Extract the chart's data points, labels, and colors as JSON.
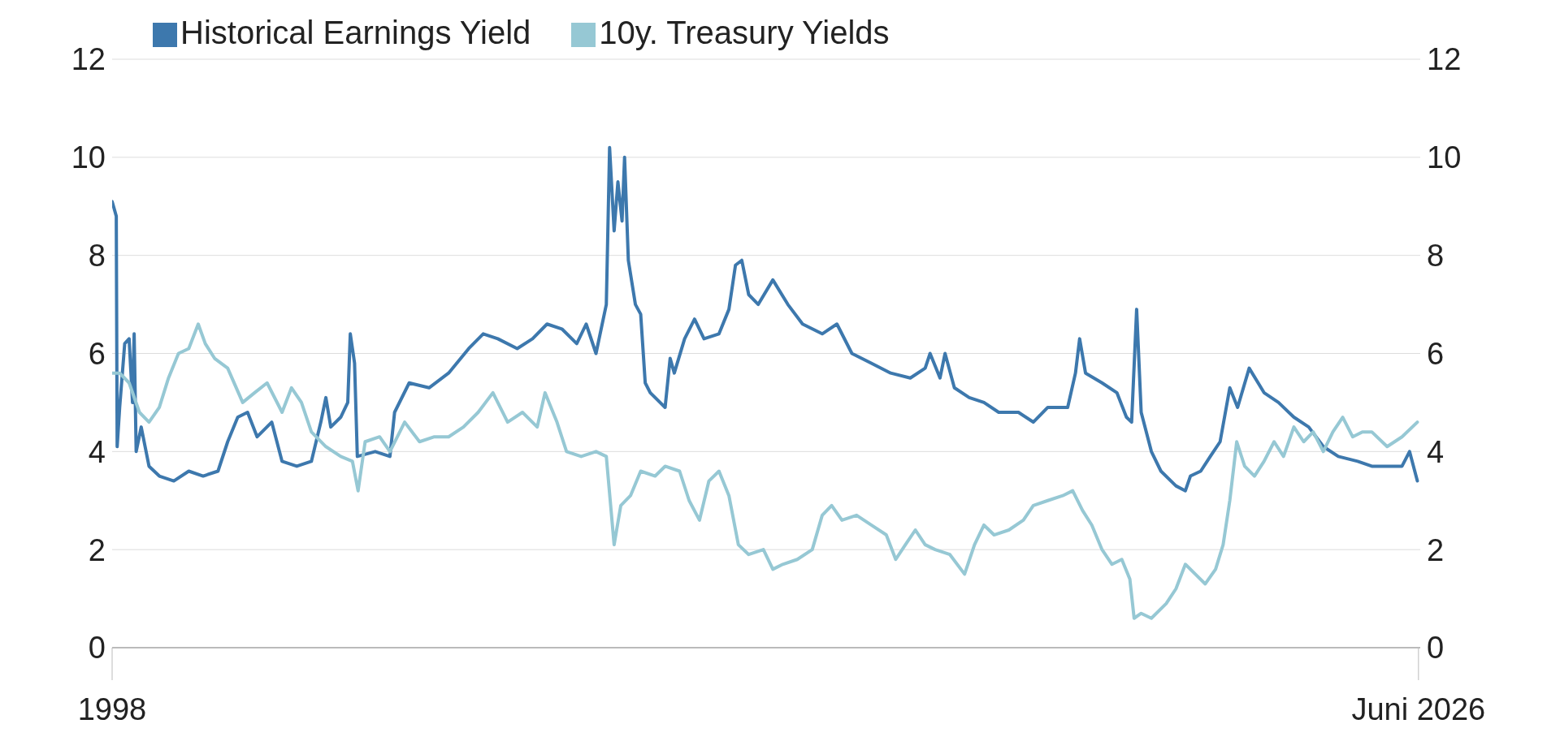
{
  "chart_data": {
    "type": "line",
    "legend": "top left",
    "grid": "y",
    "line_style": "solid",
    "marker": "none",
    "xlim": [
      "1998-01-01",
      "2026-06-15"
    ],
    "xticks": [
      {
        "value": "1998-01-01",
        "label": "1998"
      },
      {
        "value": "2026-06-01",
        "label": "Juni 2026"
      }
    ],
    "ylim": [
      0,
      12
    ],
    "yticks": [
      0,
      2,
      4,
      6,
      8,
      10,
      12
    ],
    "y2lim": [
      0,
      12
    ],
    "y2ticks": [
      0,
      2,
      4,
      6,
      8,
      10,
      12
    ],
    "series": [
      {
        "name": "Historical Earnings Yield",
        "color": "#3d78ad",
        "x": [
          "1998-01-01",
          "1998-02-03",
          "1998-02-10",
          "1998-03-02",
          "1998-04-11",
          "1998-05-16",
          "1998-06-12",
          "1998-06-25",
          "1998-07-11",
          "1998-08-20",
          "1998-10-21",
          "1999-01-11",
          "1999-05-06",
          "1999-09-02",
          "1999-12-25",
          "2000-04-21",
          "2000-07-07",
          "2000-09-25",
          "2000-12-12",
          "2001-02-26",
          "2001-06-22",
          "2001-09-12",
          "2002-01-07",
          "2002-05-03",
          "2002-07-17",
          "2002-08-26",
          "2002-10-04",
          "2002-12-22",
          "2003-02-16",
          "2003-03-08",
          "2003-04-11",
          "2003-05-03",
          "2003-09-22",
          "2004-01-17",
          "2004-02-23",
          "2004-06-18",
          "2004-11-23",
          "2005-04-27",
          "2005-10-04",
          "2006-01-27",
          "2006-05-23",
          "2006-10-24",
          "2007-02-23",
          "2007-06-18",
          "2007-10-14",
          "2008-02-09",
          "2008-04-24",
          "2008-07-11",
          "2008-10-01",
          "2008-10-27",
          "2008-12-02",
          "2009-01-01",
          "2009-02-03",
          "2009-02-23",
          "2009-03-25",
          "2009-05-20",
          "2009-07-01",
          "2009-08-06",
          "2009-09-15",
          "2009-12-02",
          "2010-01-11",
          "2010-02-20",
          "2010-03-25",
          "2010-06-15",
          "2010-09-02",
          "2010-11-16",
          "2011-03-15",
          "2011-06-02",
          "2011-07-24",
          "2011-09-12",
          "2011-11-06",
          "2012-01-21",
          "2012-05-16",
          "2012-09-12",
          "2013-01-07",
          "2013-06-12",
          "2013-10-07",
          "2014-02-03",
          "2014-07-07",
          "2014-12-08",
          "2015-05-13",
          "2015-09-08",
          "2015-10-17",
          "2016-01-04",
          "2016-02-13",
          "2016-04-27",
          "2016-08-23",
          "2016-12-18",
          "2017-04-14",
          "2017-09-18",
          "2018-01-14",
          "2018-05-09",
          "2018-10-14",
          "2018-12-15",
          "2019-01-17",
          "2019-03-05",
          "2019-07-14",
          "2019-11-09",
          "2020-01-24",
          "2020-03-05",
          "2020-04-14",
          "2020-05-20",
          "2020-08-09",
          "2020-10-24",
          "2021-02-20",
          "2021-05-06",
          "2021-06-15",
          "2021-09-05",
          "2021-11-20",
          "2022-02-06",
          "2022-04-24",
          "2022-06-25",
          "2022-09-25",
          "2023-01-21",
          "2023-05-16",
          "2023-09-15",
          "2024-01-11",
          "2024-05-06",
          "2024-09-02",
          "2025-02-03",
          "2025-05-26",
          "2025-09-25",
          "2026-01-21",
          "2026-03-22",
          "2026-05-23"
        ],
        "values": [
          9.1,
          8.8,
          4.1,
          4.9,
          6.2,
          6.3,
          5.0,
          6.4,
          4.0,
          4.5,
          3.7,
          3.5,
          3.4,
          3.6,
          3.5,
          3.6,
          4.2,
          4.7,
          4.8,
          4.3,
          4.6,
          3.8,
          3.7,
          3.8,
          4.6,
          5.1,
          4.5,
          4.7,
          5.0,
          6.4,
          5.8,
          3.9,
          4.0,
          3.9,
          4.8,
          5.4,
          5.3,
          5.6,
          6.1,
          6.4,
          6.3,
          6.1,
          6.3,
          6.6,
          6.5,
          6.2,
          6.6,
          6.0,
          7.0,
          10.2,
          8.5,
          9.5,
          8.7,
          10.0,
          7.9,
          7.0,
          6.8,
          5.4,
          5.2,
          5.0,
          4.9,
          5.9,
          5.6,
          6.3,
          6.7,
          6.3,
          6.4,
          6.9,
          7.8,
          7.9,
          7.2,
          7.0,
          7.5,
          7.0,
          6.6,
          6.4,
          6.6,
          6.0,
          5.8,
          5.6,
          5.5,
          5.7,
          6.0,
          5.5,
          6.0,
          5.3,
          5.1,
          5.0,
          4.8,
          4.8,
          4.6,
          4.9,
          4.9,
          5.6,
          6.3,
          5.6,
          5.4,
          5.2,
          4.7,
          4.6,
          6.9,
          4.8,
          4.0,
          3.6,
          3.3,
          3.2,
          3.5,
          3.6,
          3.9,
          4.2,
          5.3,
          4.9,
          5.7,
          5.2,
          5.0,
          4.7,
          4.5,
          4.1,
          3.9,
          3.8,
          3.7,
          3.7,
          3.7,
          4.0,
          3.4
        ]
      },
      {
        "name": "10y. Treasury Yields",
        "color": "#96c8d4",
        "x": [
          "1998-01-01",
          "1998-03-02",
          "1998-05-16",
          "1998-08-06",
          "1998-10-21",
          "1999-01-11",
          "1999-03-25",
          "1999-06-12",
          "1999-09-02",
          "1999-11-16",
          "2000-01-11",
          "2000-03-25",
          "2000-07-07",
          "2000-11-03",
          "2001-02-06",
          "2001-05-16",
          "2001-09-12",
          "2001-11-26",
          "2002-02-13",
          "2002-05-03",
          "2002-08-26",
          "2002-12-22",
          "2003-03-25",
          "2003-05-09",
          "2003-07-04",
          "2003-10-27",
          "2004-01-17",
          "2004-05-13",
          "2004-09-08",
          "2005-01-04",
          "2005-04-27",
          "2005-08-23",
          "2005-12-18",
          "2006-04-14",
          "2006-08-09",
          "2006-12-05",
          "2007-04-01",
          "2007-06-02",
          "2007-09-05",
          "2007-11-20",
          "2008-03-15",
          "2008-07-11",
          "2008-10-01",
          "2008-12-02",
          "2009-01-24",
          "2009-04-11",
          "2009-07-01",
          "2009-10-24",
          "2010-01-11",
          "2010-05-06",
          "2010-07-21",
          "2010-10-11",
          "2010-12-25",
          "2011-03-15",
          "2011-06-02",
          "2011-08-16",
          "2011-11-06",
          "2012-03-02",
          "2012-05-16",
          "2012-08-03",
          "2012-11-26",
          "2013-03-25",
          "2013-06-12",
          "2013-08-26",
          "2013-11-16",
          "2014-03-12",
          "2014-07-07",
          "2014-11-03",
          "2015-01-17",
          "2015-04-04",
          "2015-06-22",
          "2015-09-08",
          "2015-11-26",
          "2016-03-22",
          "2016-07-17",
          "2016-10-04",
          "2016-12-18",
          "2017-03-08",
          "2017-07-04",
          "2017-10-27",
          "2018-01-14",
          "2018-05-09",
          "2018-09-05",
          "2018-11-23",
          "2019-02-09",
          "2019-04-24",
          "2019-07-14",
          "2019-10-01",
          "2019-12-18",
          "2020-02-20",
          "2020-03-25",
          "2020-05-20",
          "2020-08-09",
          "2020-12-05",
          "2021-02-20",
          "2021-05-06",
          "2021-07-24",
          "2021-10-11",
          "2022-01-01",
          "2022-03-02",
          "2022-04-24",
          "2022-06-18",
          "2022-08-20",
          "2022-11-06",
          "2023-01-21",
          "2023-04-11",
          "2023-06-25",
          "2023-09-15",
          "2023-12-02",
          "2024-02-16",
          "2024-05-06",
          "2024-07-21",
          "2024-10-07",
          "2024-12-25",
          "2025-03-12",
          "2025-05-26",
          "2025-09-25",
          "2026-01-21",
          "2026-05-23"
        ],
        "values": [
          5.6,
          5.6,
          5.4,
          4.8,
          4.6,
          4.9,
          5.5,
          6.0,
          6.1,
          6.6,
          6.2,
          5.9,
          5.7,
          5.0,
          5.2,
          5.4,
          4.8,
          5.3,
          5.0,
          4.4,
          4.1,
          3.9,
          3.8,
          3.2,
          4.2,
          4.3,
          4.0,
          4.6,
          4.2,
          4.3,
          4.3,
          4.5,
          4.8,
          5.2,
          4.6,
          4.8,
          4.5,
          5.2,
          4.6,
          4.0,
          3.9,
          4.0,
          3.9,
          2.1,
          2.9,
          3.1,
          3.6,
          3.5,
          3.7,
          3.6,
          3.0,
          2.6,
          3.4,
          3.6,
          3.1,
          2.1,
          1.9,
          2.0,
          1.6,
          1.7,
          1.8,
          2.0,
          2.7,
          2.9,
          2.6,
          2.7,
          2.5,
          2.3,
          1.8,
          2.1,
          2.4,
          2.1,
          2.0,
          1.9,
          1.5,
          2.1,
          2.5,
          2.3,
          2.4,
          2.6,
          2.9,
          3.0,
          3.1,
          3.2,
          2.8,
          2.5,
          2.0,
          1.7,
          1.8,
          1.4,
          0.6,
          0.7,
          0.6,
          0.9,
          1.2,
          1.7,
          1.5,
          1.3,
          1.6,
          2.1,
          3.0,
          4.2,
          3.7,
          3.5,
          3.8,
          4.2,
          3.9,
          4.5,
          4.2,
          4.4,
          4.0,
          4.4,
          4.7,
          4.3,
          4.4,
          4.4,
          4.1,
          4.3,
          4.6
        ]
      }
    ]
  }
}
